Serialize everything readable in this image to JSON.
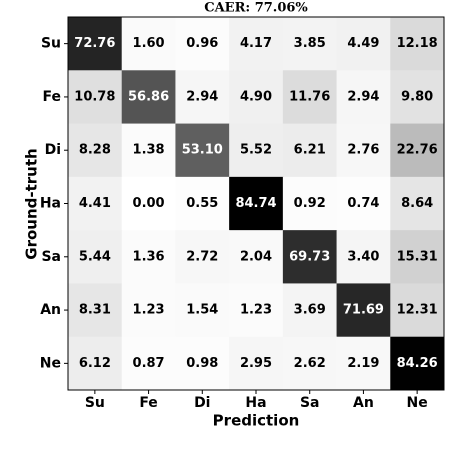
{
  "chart_data": {
    "type": "heatmap",
    "title": "CAER: 77.06%",
    "x_label": "Prediction",
    "y_label": "Ground-truth",
    "columns": [
      "Su",
      "Fe",
      "Di",
      "Ha",
      "Sa",
      "An",
      "Ne"
    ],
    "rows": [
      "Su",
      "Fe",
      "Di",
      "Ha",
      "Sa",
      "An",
      "Ne"
    ],
    "values": [
      [
        72.76,
        1.6,
        0.96,
        4.17,
        3.85,
        4.49,
        12.18
      ],
      [
        10.78,
        56.86,
        2.94,
        4.9,
        11.76,
        2.94,
        9.8
      ],
      [
        8.28,
        1.38,
        53.1,
        5.52,
        6.21,
        2.76,
        22.76
      ],
      [
        4.41,
        0,
        0.55,
        84.74,
        0.92,
        0.74,
        8.64
      ],
      [
        5.44,
        1.36,
        2.72,
        2.04,
        69.73,
        3.4,
        15.31
      ],
      [
        8.31,
        1.23,
        1.54,
        1.23,
        3.69,
        71.69,
        12.31
      ],
      [
        6.12,
        0.87,
        0.98,
        2.95,
        2.62,
        2.19,
        84.26
      ]
    ],
    "value_labels": [
      [
        "72.76",
        "1.60",
        "0.96",
        "4.17",
        "3.85",
        "4.49",
        "12.18"
      ],
      [
        "10.78",
        "56.86",
        "2.94",
        "4.90",
        "11.76",
        "2.94",
        "9.80"
      ],
      [
        "8.28",
        "1.38",
        "53.10",
        "5.52",
        "6.21",
        "2.76",
        "22.76"
      ],
      [
        "4.41",
        "0.00",
        "0.55",
        "84.74",
        "0.92",
        "0.74",
        "8.64"
      ],
      [
        "5.44",
        "1.36",
        "2.72",
        "2.04",
        "69.73",
        "3.40",
        "15.31"
      ],
      [
        "8.31",
        "1.23",
        "1.54",
        "1.23",
        "3.69",
        "71.69",
        "12.31"
      ],
      [
        "6.12",
        "0.87",
        "0.98",
        "2.95",
        "2.62",
        "2.19",
        "84.26"
      ]
    ],
    "colormap": "gray_r"
  }
}
